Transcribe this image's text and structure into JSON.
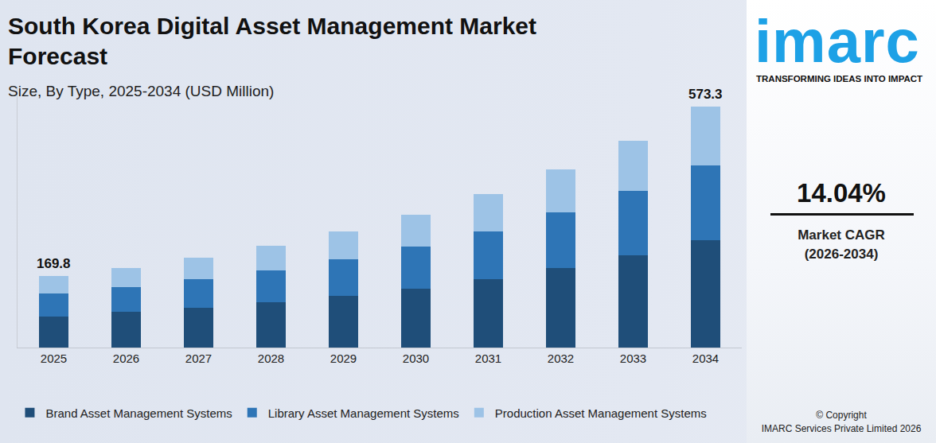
{
  "chart_data": {
    "type": "bar",
    "title": "South Korea Digital Asset Management Market Forecast",
    "subtitle": "Size, By Type, 2025-2034 (USD Million)",
    "stacked": true,
    "categories": [
      "2025",
      "2026",
      "2027",
      "2028",
      "2029",
      "2030",
      "2031",
      "2032",
      "2033",
      "2034"
    ],
    "series": [
      {
        "name": "Brand Asset Management Systems",
        "color": "#1f4e79",
        "values": [
          74.0,
          84.5,
          94.9,
          107.6,
          122.5,
          140.4,
          162.0,
          188.1,
          218.6,
          255.4
        ]
      },
      {
        "name": "Library Asset Management Systems",
        "color": "#2e75b6",
        "values": [
          54.6,
          60.0,
          67.2,
          76.2,
          86.7,
          99.4,
          114.7,
          132.5,
          153.3,
          178.0
        ]
      },
      {
        "name": "Production Asset Management Systems",
        "color": "#9dc3e6",
        "values": [
          41.2,
          45.4,
          51.2,
          58.0,
          66.1,
          75.6,
          87.3,
          102.0,
          119.3,
          139.9
        ]
      }
    ],
    "annotations": [
      {
        "category": "2025",
        "text": "169.8"
      },
      {
        "category": "2034",
        "text": "573.3"
      }
    ],
    "ylim": [
      0,
      620
    ],
    "yticks": [],
    "grid": false,
    "tick_labels": "x",
    "legend": "bottom"
  },
  "branding": {
    "logo": "imarc",
    "tagline": "TRANSFORMING IDEAS INTO IMPACT",
    "cagr": "14.04%",
    "cagr_label": "Market CAGR",
    "cagr_period": "(2026-2034)",
    "copyright": [
      "© Copyright",
      "IMARC Services Private Limited 2026"
    ]
  }
}
